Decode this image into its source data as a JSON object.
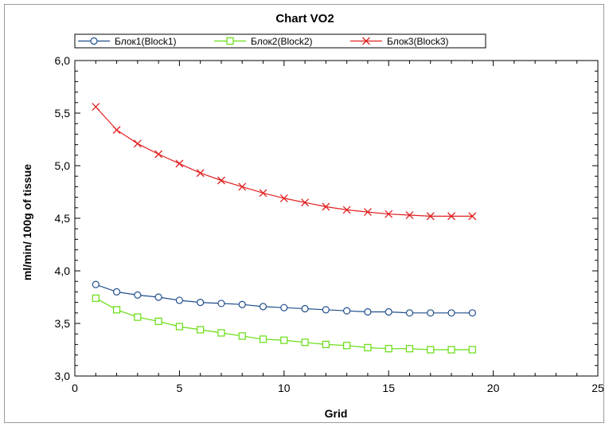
{
  "chart_data": {
    "type": "line",
    "title": "Chart VO2",
    "xlabel": "Grid",
    "ylabel": "ml/min/ 100g of tissue",
    "xlim": [
      0,
      25
    ],
    "ylim": [
      3.0,
      6.0
    ],
    "xticks": [
      "0",
      "5",
      "10",
      "15",
      "20",
      "25"
    ],
    "yticks": [
      "3,0",
      "3,5",
      "4,0",
      "4,5",
      "5,0",
      "5,5",
      "6,0"
    ],
    "grid": false,
    "legend_position": "top",
    "x": [
      1,
      2,
      3,
      4,
      5,
      6,
      7,
      8,
      9,
      10,
      11,
      12,
      13,
      14,
      15,
      16,
      17,
      18,
      19
    ],
    "series": [
      {
        "name": "Блок1(Block1)",
        "color": "#1f4e8c",
        "marker": "circle",
        "values": [
          3.87,
          3.8,
          3.77,
          3.75,
          3.72,
          3.7,
          3.69,
          3.68,
          3.66,
          3.65,
          3.64,
          3.63,
          3.62,
          3.61,
          3.61,
          3.6,
          3.6,
          3.6,
          3.6
        ]
      },
      {
        "name": "Блок2(Block2)",
        "color": "#66dd11",
        "marker": "square",
        "values": [
          3.74,
          3.63,
          3.56,
          3.52,
          3.47,
          3.44,
          3.41,
          3.38,
          3.35,
          3.34,
          3.32,
          3.3,
          3.29,
          3.27,
          3.26,
          3.26,
          3.25,
          3.25,
          3.25
        ]
      },
      {
        "name": "Блок3(Block3)",
        "color": "#e02020",
        "marker": "x",
        "values": [
          5.56,
          5.34,
          5.21,
          5.11,
          5.02,
          4.93,
          4.86,
          4.8,
          4.74,
          4.69,
          4.65,
          4.61,
          4.58,
          4.56,
          4.54,
          4.53,
          4.52,
          4.52,
          4.52
        ]
      }
    ]
  }
}
